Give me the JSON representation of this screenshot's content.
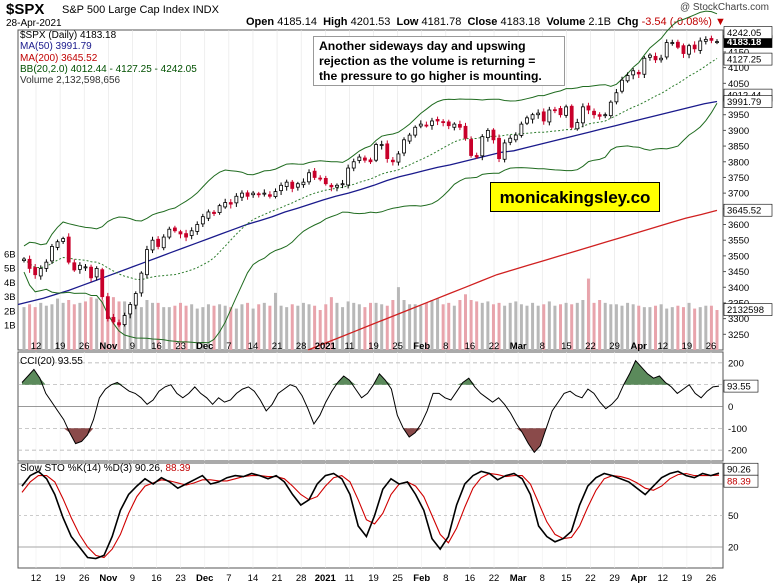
{
  "header": {
    "symbol": "$SPX",
    "name": "S&P 500 Large Cap Index  INDX",
    "date": "28-Apr-2021",
    "credit": "@ StockCharts.com",
    "open_label": "Open",
    "open": "4185.14",
    "high_label": "High",
    "high": "4201.53",
    "low_label": "Low",
    "low": "4181.78",
    "close_label": "Close",
    "close": "4183.18",
    "volume_label": "Volume",
    "volume": "2.1B",
    "chg_label": "Chg",
    "chg": "-3.54 (-0.08%)"
  },
  "legend": {
    "price": "$SPX (Daily) 4183.18",
    "ma50": "MA(50) 3991.79",
    "ma200": "MA(200) 3645.52",
    "bb": "BB(20,2.0) 4012.44 - 4127.25 - 4242.05",
    "volume": "Volume 2,132,598,656"
  },
  "annotation": {
    "line1": "Another sideways day and upswing",
    "line2": "rejection as the volume is returning =",
    "line3": "the pressure to go higher is mounting."
  },
  "watermark": "monicakingsley.co",
  "price_axis": {
    "ticks": [
      "4150",
      "4100",
      "4050",
      "4000",
      "3950",
      "3900",
      "3850",
      "3800",
      "3750",
      "3700",
      "3650",
      "3600",
      "3550",
      "3500",
      "3450",
      "3400",
      "3350",
      "3300",
      "3250"
    ],
    "tags": {
      "close": "4183.18",
      "bb_upper": "4242.05",
      "bb_mid": "4127.25",
      "ma50": "3991.79",
      "ma200": "3645.52",
      "bb_lower": "4012.44",
      "volume": "2132598"
    }
  },
  "volume_axis": {
    "ticks": [
      "6B",
      "5B",
      "4B",
      "3B",
      "2B",
      "1B"
    ]
  },
  "cci": {
    "label": "CCI(20) 93.55",
    "value_tag": "93.55",
    "ticks": [
      "200",
      "100",
      "0",
      "-100",
      "-200"
    ]
  },
  "sto": {
    "label_prefix": "Slow STO %K(14) %D(3)",
    "k": "90.26",
    "d": "88.39",
    "ticks": [
      "80",
      "50",
      "20"
    ],
    "value_tags": [
      "90.26",
      "88.39"
    ]
  },
  "x_axis": {
    "labels": [
      "12",
      "19",
      "26",
      "Nov",
      "9",
      "16",
      "23",
      "Dec",
      "7",
      "14",
      "21",
      "28",
      "2021",
      "11",
      "19",
      "25",
      "Feb",
      "8",
      "16",
      "22",
      "Mar",
      "8",
      "15",
      "22",
      "29",
      "Apr",
      "12",
      "19",
      "26"
    ]
  },
  "colors": {
    "up": "#000000",
    "down": "#c8002a",
    "ma50": "#1a1a8c",
    "ma200": "#d02020",
    "bb": "#1f6b1f",
    "bb_mid": "#2e7d2e",
    "vol_up": "#b8b8b8",
    "vol_down": "#e8a4ac",
    "cci_pos": "#5b8a5b",
    "cci_neg": "#8a4a4a",
    "sto_k": "#000000",
    "sto_d": "#d00000",
    "tag": "#000000"
  },
  "chart_data": [
    {
      "type": "candlestick",
      "title": "$SPX (Daily) 4183.18",
      "ylim": [
        3200,
        4220
      ],
      "series": [
        {
          "name": "$SPX (Daily) 4183.18",
          "values": [
            3490,
            3460,
            3440,
            3460,
            3480,
            3530,
            3545,
            3555,
            3480,
            3455,
            3470,
            3465,
            3430,
            3460,
            3370,
            3300,
            3290,
            3280,
            3310,
            3345,
            3380,
            3445,
            3520,
            3550,
            3530,
            3560,
            3585,
            3580,
            3570,
            3560,
            3580,
            3600,
            3625,
            3640,
            3635,
            3660,
            3670,
            3665,
            3690,
            3700,
            3690,
            3700,
            3695,
            3700,
            3690,
            3705,
            3725,
            3735,
            3715,
            3730,
            3735,
            3765,
            3750,
            3745,
            3730,
            3720,
            3725,
            3730,
            3780,
            3800,
            3815,
            3805,
            3800,
            3855,
            3855,
            3810,
            3800,
            3825,
            3870,
            3885,
            3910,
            3920,
            3915,
            3930,
            3930,
            3925,
            3915,
            3920,
            3910,
            3875,
            3820,
            3815,
            3880,
            3900,
            3870,
            3810,
            3860,
            3875,
            3885,
            3920,
            3940,
            3950,
            3955,
            3930,
            3965,
            3965,
            3950,
            3975,
            3910,
            3925,
            3975,
            3965,
            3950,
            3945,
            3950,
            3990,
            4020,
            4060,
            4075,
            4090,
            4080,
            4130,
            4140,
            4125,
            4130,
            4180,
            4180,
            4165,
            4145,
            4170,
            4160,
            4185,
            4190,
            4187,
            4183
          ]
        },
        {
          "name": "MA(50) 3991.79",
          "values": [
            3345,
            3355,
            3365,
            3378,
            3390,
            3405,
            3420,
            3435,
            3450,
            3465,
            3480,
            3495,
            3510,
            3525,
            3540,
            3555,
            3570,
            3585,
            3600,
            3612,
            3625,
            3640,
            3652,
            3665,
            3678,
            3690,
            3700,
            3712,
            3725,
            3740,
            3752,
            3762,
            3772,
            3782,
            3790,
            3800,
            3810,
            3820,
            3830,
            3835,
            3845,
            3855,
            3865,
            3875,
            3885,
            3895,
            3905,
            3915,
            3925,
            3935,
            3945,
            3955,
            3965,
            3975,
            3985,
            3992
          ]
        },
        {
          "name": "MA(200) 3645.52",
          "values": [
            3200,
            3220,
            3240,
            3260,
            3280,
            3300,
            3320,
            3340,
            3360,
            3380,
            3400,
            3420,
            3440,
            3455,
            3470,
            3485,
            3500,
            3515,
            3530,
            3545,
            3560,
            3575,
            3590,
            3605,
            3620,
            3632,
            3645
          ]
        },
        {
          "name": "BB(20,2.0) 4012.44 - 4127.25 - 4242.05",
          "values": [
            4242.05,
            4127.25,
            4012.44
          ]
        }
      ]
    },
    {
      "type": "bar",
      "title": "Volume 2,132,598,656",
      "ylim": [
        0,
        7
      ],
      "series": [
        {
          "name": "Volume 2,132,598,656",
          "values": [
            2.3,
            2.5,
            2.3,
            2.6,
            2.4,
            2.5,
            2.9,
            2.6,
            2.8,
            2.5,
            2.6,
            2.7,
            3.0,
            2.9,
            2.8,
            3.0,
            3.0,
            2.7,
            2.7,
            2.5,
            2.4,
            2.3,
            2.8,
            2.6,
            2.6,
            2.3,
            2.3,
            2.4,
            2.6,
            2.4,
            2.5,
            2.2,
            2.3,
            2.5,
            2.4,
            2.5,
            2.4,
            2.3,
            2.2,
            2.5,
            2.6,
            2.2,
            2.5,
            2.6,
            2.4,
            3.3,
            2.4,
            2.3,
            2.5,
            2.4,
            2.6,
            2.5,
            2.4,
            2.1,
            2.5,
            3.0,
            2.6,
            2.3,
            2.7,
            2.6,
            2.5,
            2.3,
            2.6,
            2.6,
            2.5,
            2.4,
            2.8,
            3.7,
            2.8,
            2.5,
            2.5,
            2.4,
            2.6,
            2.8,
            2.9,
            2.5,
            2.6,
            2.4,
            2.8,
            3.2,
            2.8,
            2.7,
            2.6,
            2.7,
            2.5,
            2.6,
            2.4,
            2.6,
            2.7,
            2.5,
            2.4,
            2.6,
            2.4,
            2.5,
            2.7,
            2.4,
            2.5,
            2.6,
            2.5,
            2.6,
            2.8,
            4.3,
            2.6,
            2.8,
            2.6,
            2.5,
            2.5,
            2.4,
            2.6,
            2.5,
            2.4,
            2.3,
            2.3,
            2.4,
            2.5,
            2.2,
            2.3,
            2.4,
            2.3,
            2.6,
            2.2,
            2.3,
            2.4,
            2.4,
            2.1
          ]
        }
      ]
    },
    {
      "type": "area",
      "title": "CCI(20) 93.55",
      "ylim": [
        -250,
        250
      ],
      "series": [
        {
          "name": "CCI(20) 93.55",
          "values": [
            110,
            140,
            170,
            130,
            60,
            20,
            -20,
            -60,
            -120,
            -170,
            -160,
            -130,
            -60,
            40,
            80,
            100,
            110,
            90,
            70,
            60,
            40,
            10,
            30,
            70,
            90,
            100,
            60,
            40,
            60,
            90,
            60,
            40,
            10,
            40,
            20,
            30,
            60,
            80,
            90,
            70,
            30,
            -20,
            10,
            60,
            80,
            100,
            90,
            50,
            -10,
            -80,
            -40,
            20,
            70,
            110,
            140,
            120,
            80,
            40,
            60,
            100,
            150,
            120,
            80,
            -40,
            -100,
            -140,
            -120,
            -80,
            -20,
            60,
            60,
            40,
            30,
            70,
            110,
            130,
            90,
            60,
            40,
            20,
            40,
            10,
            -30,
            -80,
            -120,
            -170,
            -210,
            -180,
            -100,
            -20,
            20,
            60,
            70,
            50,
            40,
            80,
            60,
            20,
            -10,
            10,
            40,
            100,
            150,
            210,
            180,
            150,
            130,
            140,
            110,
            90,
            60,
            80,
            100,
            60,
            40,
            70,
            90,
            93.55
          ]
        }
      ]
    },
    {
      "type": "line",
      "title": "Slow STO %K(14) %D(3) 90.26, 88.39",
      "ylim": [
        0,
        100
      ],
      "series": [
        {
          "name": "%K(14)",
          "values": [
            78,
            88,
            92,
            85,
            70,
            48,
            30,
            20,
            10,
            9,
            12,
            30,
            55,
            70,
            78,
            85,
            80,
            86,
            82,
            76,
            80,
            84,
            88,
            80,
            82,
            86,
            88,
            87,
            90,
            88,
            85,
            88,
            82,
            70,
            60,
            65,
            80,
            88,
            90,
            85,
            70,
            40,
            30,
            50,
            75,
            85,
            80,
            82,
            70,
            55,
            28,
            18,
            30,
            60,
            80,
            88,
            92,
            90,
            84,
            88,
            90,
            85,
            70,
            40,
            30,
            25,
            28,
            35,
            60,
            78,
            86,
            90,
            88,
            85,
            82,
            76,
            70,
            78,
            86,
            90,
            92,
            88,
            86,
            90,
            88,
            90.26
          ]
        },
        {
          "name": "%D(3)",
          "values": [
            72,
            82,
            88,
            88,
            82,
            66,
            48,
            32,
            20,
            12,
            10,
            18,
            32,
            52,
            68,
            78,
            81,
            84,
            83,
            81,
            79,
            81,
            84,
            84,
            83,
            83,
            85,
            87,
            88,
            88,
            87,
            87,
            85,
            78,
            70,
            65,
            68,
            78,
            86,
            88,
            82,
            65,
            46,
            42,
            52,
            70,
            80,
            82,
            78,
            68,
            50,
            32,
            24,
            38,
            58,
            76,
            86,
            90,
            89,
            87,
            88,
            88,
            80,
            62,
            44,
            32,
            28,
            29,
            40,
            58,
            74,
            85,
            88,
            87,
            85,
            81,
            76,
            74,
            78,
            85,
            89,
            90,
            88,
            88,
            88,
            88.39
          ]
        }
      ]
    }
  ]
}
